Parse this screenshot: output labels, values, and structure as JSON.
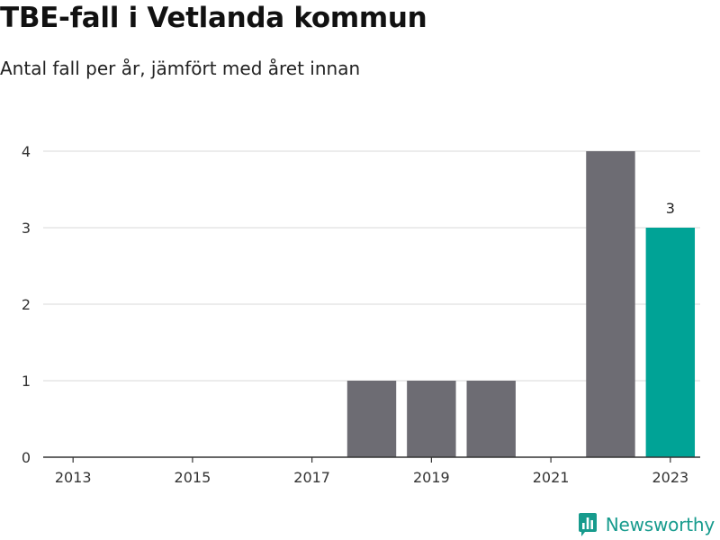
{
  "title": "TBE-fall i Vetlanda kommun",
  "subtitle": "Antal fall per år, jämfört med året innan",
  "brand": "Newsworthy",
  "colors": {
    "bar": "#6d6c73",
    "highlight": "#00a396",
    "grid": "#d9d9d9",
    "axis": "#333333",
    "brand": "#179b8d"
  },
  "chart_data": {
    "type": "bar",
    "title": "TBE-fall i Vetlanda kommun",
    "subtitle": "Antal fall per år, jämfört med året innan",
    "categories": [
      "2013",
      "2014",
      "2015",
      "2016",
      "2017",
      "2018",
      "2019",
      "2020",
      "2021",
      "2022",
      "2023"
    ],
    "values": [
      0,
      0,
      0,
      0,
      0,
      1,
      1,
      1,
      0,
      4,
      3
    ],
    "highlight_index": 10,
    "data_labels": [
      {
        "index": 10,
        "text": "3"
      }
    ],
    "x_tick_labels": [
      "2013",
      "2015",
      "2017",
      "2019",
      "2021",
      "2023"
    ],
    "y_ticks": [
      0,
      1,
      2,
      3,
      4
    ],
    "ylim": [
      0,
      4
    ],
    "xlabel": "",
    "ylabel": "",
    "grid": true,
    "legend": false
  }
}
